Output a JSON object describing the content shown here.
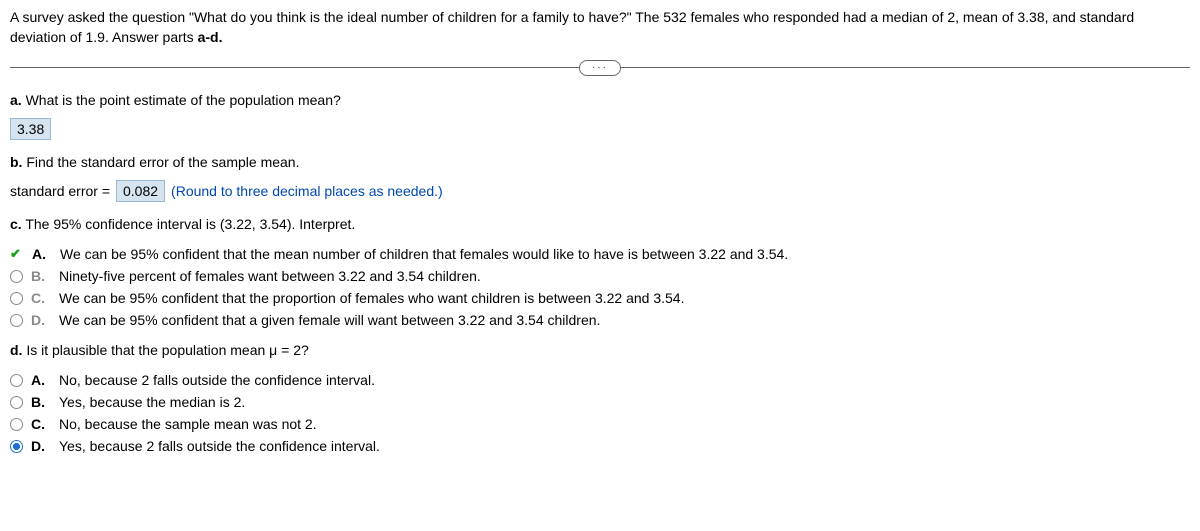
{
  "intro": "A survey asked the question \"What do you think is the ideal number of children for a family to have?\" The 532 females who responded had a median of 2, mean of 3.38, and standard deviation of 1.9. Answer parts ",
  "intro_bold": "a-d.",
  "ellipsis": "···",
  "partA": {
    "label": "a.",
    "question": " What is the point estimate of the population mean?",
    "answer": "3.38"
  },
  "partB": {
    "label": "b.",
    "question": " Find the standard error of the sample mean.",
    "prefix": "standard error = ",
    "answer": "0.082",
    "hint": "  (Round to three decimal places as needed.)"
  },
  "partC": {
    "label": "c.",
    "question": " The 95% confidence interval is (3.22, 3.54). Interpret.",
    "options": [
      {
        "letter": "A.",
        "text": "We can be 95% confident that the mean number of children that females would like to have is between 3.22 and 3.54.",
        "state": "correct"
      },
      {
        "letter": "B.",
        "text": "Ninety-five percent of females want between 3.22 and 3.54 children.",
        "state": "none"
      },
      {
        "letter": "C.",
        "text": "We can be 95% confident that the proportion of females who want children is between 3.22 and 3.54.",
        "state": "none"
      },
      {
        "letter": "D.",
        "text": "We can be 95% confident that a given female will want between 3.22 and 3.54 children.",
        "state": "none"
      }
    ]
  },
  "partD": {
    "label": "d.",
    "question": " Is it plausible that the population mean μ = 2?",
    "options": [
      {
        "letter": "A.",
        "text": "No, because 2 falls outside the confidence interval.",
        "state": "none"
      },
      {
        "letter": "B.",
        "text": "Yes, because the median is 2.",
        "state": "none"
      },
      {
        "letter": "C.",
        "text": "No, because the sample mean was not 2.",
        "state": "none"
      },
      {
        "letter": "D.",
        "text": "Yes, because 2 falls outside the confidence interval.",
        "state": "selected"
      }
    ]
  }
}
